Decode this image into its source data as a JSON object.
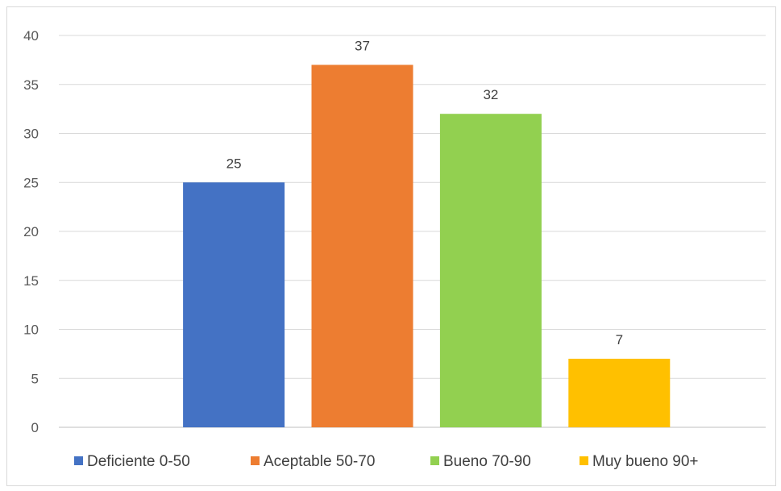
{
  "chart_data": {
    "type": "bar",
    "categories": [
      "Deficiente 0-50",
      "Aceptable 50-70",
      "Bueno 70-90",
      "Muy bueno 90+"
    ],
    "values": [
      25,
      37,
      32,
      7
    ],
    "colors": [
      "#4472c4",
      "#ed7d31",
      "#92d050",
      "#ffc000"
    ],
    "ylim": [
      0,
      40
    ],
    "yticks": [
      0,
      5,
      10,
      15,
      20,
      25,
      30,
      35,
      40
    ],
    "grid": true,
    "legend_position": "bottom",
    "data_labels": true
  }
}
